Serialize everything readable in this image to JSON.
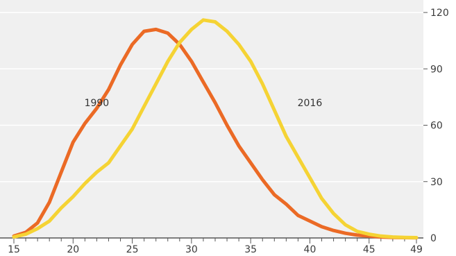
{
  "chart_data": {
    "type": "line",
    "title": "",
    "xlabel": "",
    "ylabel": "",
    "xlim": [
      15,
      49
    ],
    "ylim": [
      0,
      120
    ],
    "x_ticks": [
      15,
      20,
      25,
      30,
      35,
      40,
      45,
      49
    ],
    "x_tick_labels": [
      "15",
      "20",
      "25",
      "30",
      "35",
      "40",
      "45",
      "49"
    ],
    "y_ticks": [
      0,
      30,
      60,
      90,
      120
    ],
    "y_tick_labels": [
      "0",
      "30",
      "60",
      "90",
      "120"
    ],
    "y_axis_position": "right",
    "grid": "horizontal",
    "legend": "none",
    "background_color": "#f0f0f0",
    "x": [
      15,
      16,
      17,
      18,
      19,
      20,
      21,
      22,
      23,
      24,
      25,
      26,
      27,
      28,
      29,
      30,
      31,
      32,
      33,
      34,
      35,
      36,
      37,
      38,
      39,
      40,
      41,
      42,
      43,
      44,
      45,
      46,
      47,
      48,
      49
    ],
    "series": [
      {
        "name": "1990",
        "color": "#eb6a25",
        "label_at": [
          22,
          72
        ],
        "values": [
          1,
          3,
          8,
          19,
          35,
          51,
          61,
          69,
          79,
          92,
          103,
          110,
          111,
          109,
          103,
          94,
          83,
          72,
          60,
          49,
          40,
          31,
          23,
          18,
          12,
          9,
          6,
          4,
          2.5,
          1.5,
          1,
          0.5,
          0.3,
          0.2,
          0.1
        ]
      },
      {
        "name": "2016",
        "color": "#f5d334",
        "label_at": [
          40,
          72
        ],
        "values": [
          0.5,
          2,
          5,
          9,
          16,
          22,
          29,
          35,
          40,
          49,
          58,
          70,
          82,
          94,
          104,
          111,
          116,
          115,
          110,
          103,
          94,
          82,
          68,
          54,
          43,
          32,
          21,
          13,
          7,
          3.5,
          2,
          1,
          0.5,
          0.3,
          0.2
        ]
      }
    ]
  }
}
